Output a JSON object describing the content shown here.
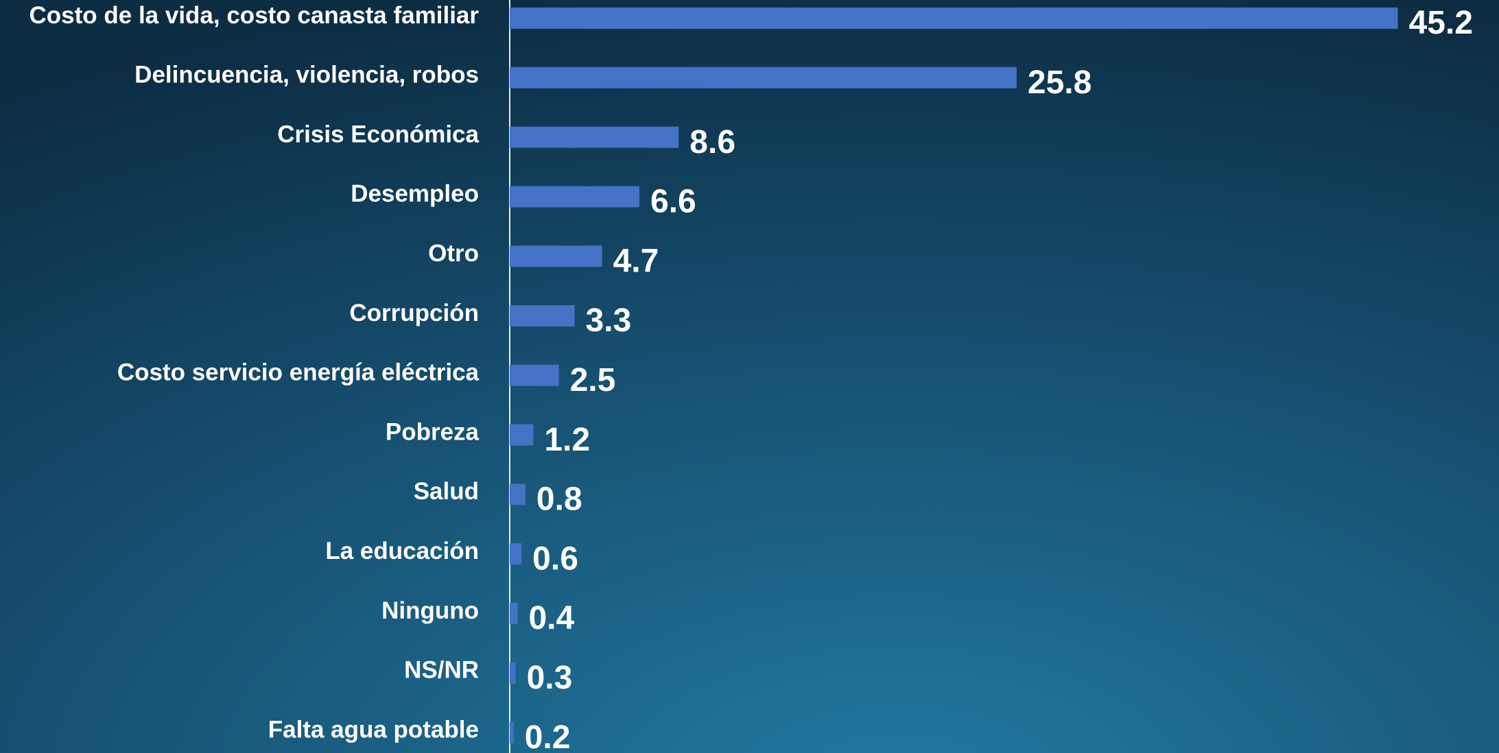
{
  "chart_data": {
    "type": "bar",
    "orientation": "horizontal",
    "categories": [
      "Costo de la vida, costo canasta familiar",
      "Delincuencia, violencia, robos",
      "Crisis Económica",
      "Desempleo",
      "Otro",
      "Corrupción",
      "Costo servicio energía eléctrica",
      "Pobreza",
      "Salud",
      "La educación",
      "Ninguno",
      "NS/NR",
      "Falta agua potable"
    ],
    "values": [
      45.2,
      25.8,
      8.6,
      6.6,
      4.7,
      3.3,
      2.5,
      1.2,
      0.8,
      0.6,
      0.4,
      0.3,
      0.2
    ],
    "color": "#4472c4",
    "xlim": [
      0,
      50
    ]
  }
}
